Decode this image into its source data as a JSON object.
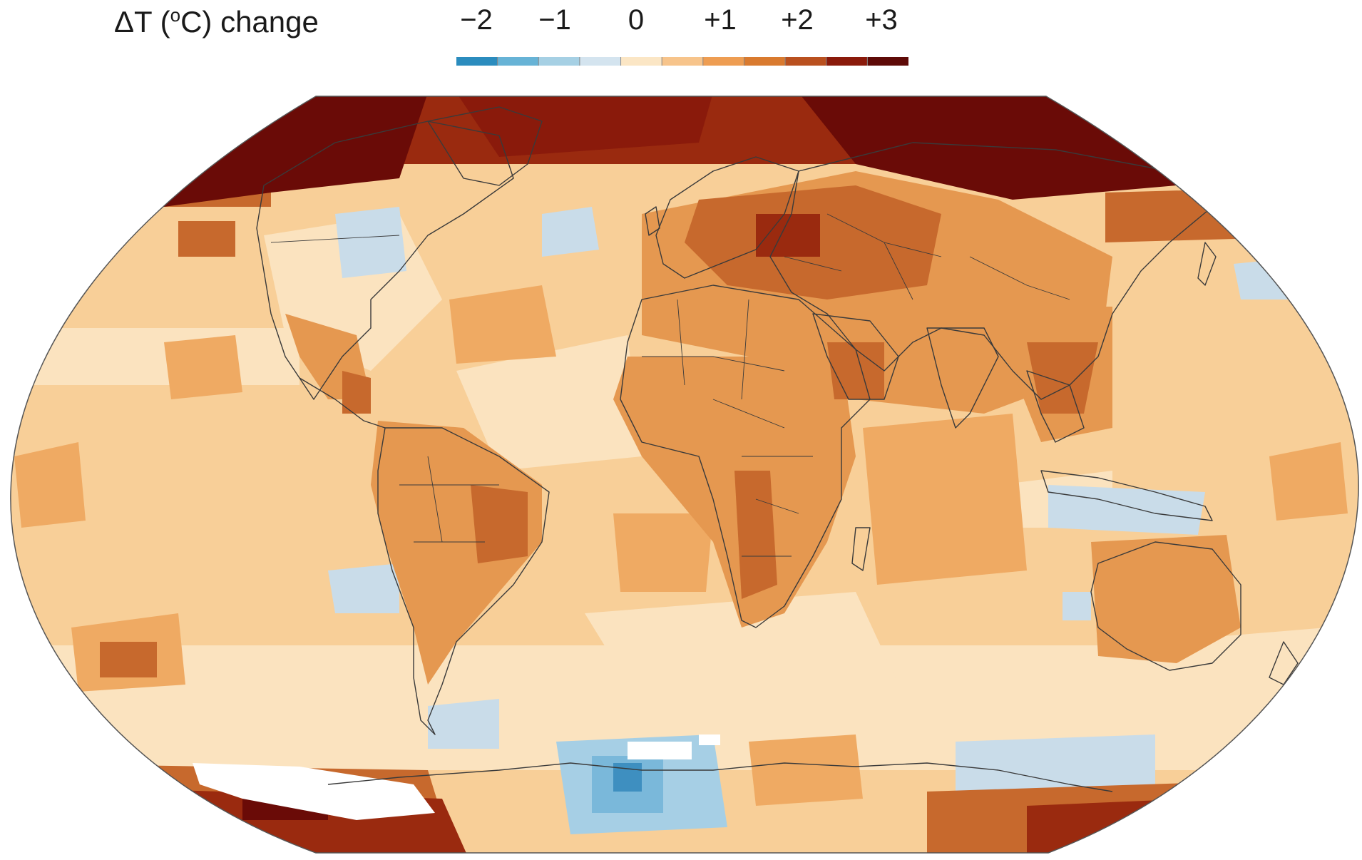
{
  "legend": {
    "title_main": "ΔT (",
    "title_sup": "o",
    "title_rest": "C) change",
    "ticks": [
      "−2",
      "−1",
      "0",
      "+1",
      "+2",
      "+3"
    ],
    "colors": [
      "#2b8cbe",
      "#67b3d6",
      "#a6d0e4",
      "#d4e4ef",
      "#fbe6c5",
      "#f7c48b",
      "#ee9d52",
      "#d97a2f",
      "#b9501f",
      "#8a1a0b",
      "#5e0a07"
    ]
  },
  "colors": {
    "ocean_warm": "#f8cf98",
    "land_warm": "#e59850",
    "pale": "#fbe3bf",
    "cool": "#c9dce9",
    "cold": "#7ab8da",
    "coldest": "#3e8fc0",
    "hot": "#c7692d",
    "very_hot": "#9a2a0f",
    "extreme": "#6a0b07",
    "ice": "#ffffff",
    "border": "#3a3a3a"
  }
}
